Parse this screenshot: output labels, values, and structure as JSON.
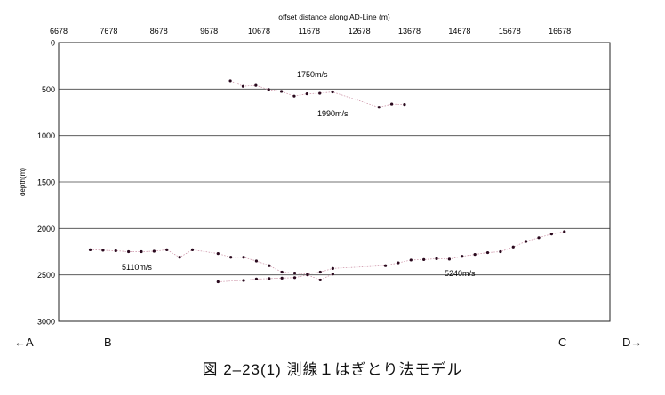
{
  "chart_data": {
    "type": "scatter",
    "title": "offset distance along AD-Line (m)",
    "xlabel": "offset distance along AD-Line (m)",
    "ylabel": "depth(m)",
    "xlim": [
      6678,
      17678
    ],
    "ylim": [
      0,
      3000
    ],
    "y_inverted": true,
    "x_axis_position": "top",
    "grid": "horizontal",
    "x_ticks": [
      6678,
      7678,
      8678,
      9678,
      10678,
      11678,
      12678,
      13678,
      14678,
      15678,
      16678
    ],
    "y_ticks": [
      0,
      500,
      1000,
      1500,
      2000,
      2500,
      3000
    ],
    "colors": {
      "points": "#2a0a1e",
      "lines": "#c98aa0",
      "grid": "#444444"
    },
    "series": [
      {
        "points": [
          [
            10104,
            410
          ],
          [
            10359,
            470
          ],
          [
            10614,
            460
          ],
          [
            10869,
            505
          ],
          [
            11124,
            525
          ],
          [
            11379,
            575
          ],
          [
            11634,
            550
          ],
          [
            11889,
            545
          ],
          [
            12144,
            530
          ],
          [
            13069,
            695
          ],
          [
            13324,
            660
          ],
          [
            13579,
            665
          ]
        ]
      },
      {
        "points": [
          [
            7308,
            2230
          ],
          [
            7563,
            2235
          ],
          [
            7818,
            2240
          ],
          [
            8073,
            2250
          ],
          [
            8328,
            2250
          ],
          [
            8583,
            2245
          ],
          [
            8838,
            2230
          ],
          [
            9093,
            2310
          ],
          [
            9348,
            2230
          ],
          [
            9859,
            2270
          ],
          [
            10114,
            2310
          ],
          [
            10369,
            2310
          ],
          [
            10624,
            2350
          ],
          [
            10879,
            2400
          ],
          [
            11134,
            2470
          ],
          [
            11389,
            2480
          ],
          [
            11644,
            2490
          ],
          [
            11899,
            2470
          ],
          [
            12149,
            2430
          ],
          [
            13199,
            2400
          ],
          [
            13454,
            2370
          ],
          [
            13709,
            2340
          ],
          [
            13964,
            2335
          ],
          [
            14219,
            2325
          ],
          [
            14474,
            2330
          ],
          [
            14729,
            2300
          ],
          [
            14984,
            2280
          ],
          [
            15239,
            2260
          ],
          [
            15494,
            2250
          ],
          [
            15749,
            2200
          ],
          [
            16004,
            2140
          ],
          [
            16259,
            2100
          ],
          [
            16514,
            2060
          ],
          [
            16769,
            2035
          ]
        ]
      },
      {
        "points": [
          [
            9859,
            2575
          ],
          [
            10369,
            2560
          ],
          [
            10624,
            2545
          ],
          [
            10879,
            2540
          ],
          [
            11134,
            2535
          ],
          [
            11389,
            2530
          ],
          [
            11644,
            2500
          ],
          [
            11899,
            2555
          ],
          [
            12149,
            2490
          ]
        ]
      }
    ],
    "annotations": [
      "1750m/s",
      "1990m/s",
      "5110m/s",
      "5240m/s"
    ]
  },
  "markers": {
    "a": "←A",
    "b": "B",
    "c": "C",
    "d": "D→"
  },
  "caption": "図 2–23(1)  測線１はぎとり法モデル"
}
